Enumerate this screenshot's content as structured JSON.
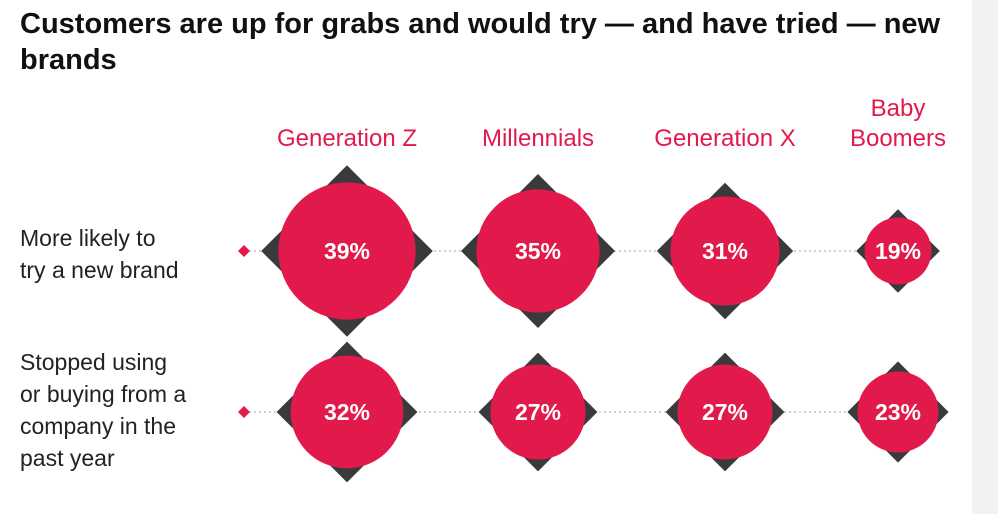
{
  "title": "Customers are up for grabs and would try — and have tried — new brands",
  "colors": {
    "accent": "#e11a4b",
    "diamond": "#3a3a3a",
    "label_text": "#222222",
    "value_text": "#ffffff"
  },
  "chart_data": {
    "type": "table",
    "title": "Customers are up for grabs and would try — and have tried — new brands",
    "categories": [
      "Generation Z",
      "Millennials",
      "Generation X",
      "Baby Boomers"
    ],
    "rows": [
      {
        "label": "More likely to try a new brand",
        "values": [
          39,
          35,
          31,
          19
        ],
        "labels": [
          "39%",
          "35%",
          "31%",
          "19%"
        ]
      },
      {
        "label": "Stopped using or buying from a company in the past year",
        "values": [
          32,
          27,
          27,
          23
        ],
        "labels": [
          "32%",
          "27%",
          "27%",
          "23%"
        ]
      }
    ],
    "unit": "%"
  },
  "header_lines": {
    "gen_z": "Generation Z",
    "millennials": "Millennials",
    "gen_x": "Generation X",
    "boomers_line1": "Baby",
    "boomers_line2": "Boomers"
  },
  "row_label_lines": {
    "row1": "More likely to\ntry a new brand",
    "row2": "Stopped using\nor buying from a\ncompany in the\npast year"
  }
}
